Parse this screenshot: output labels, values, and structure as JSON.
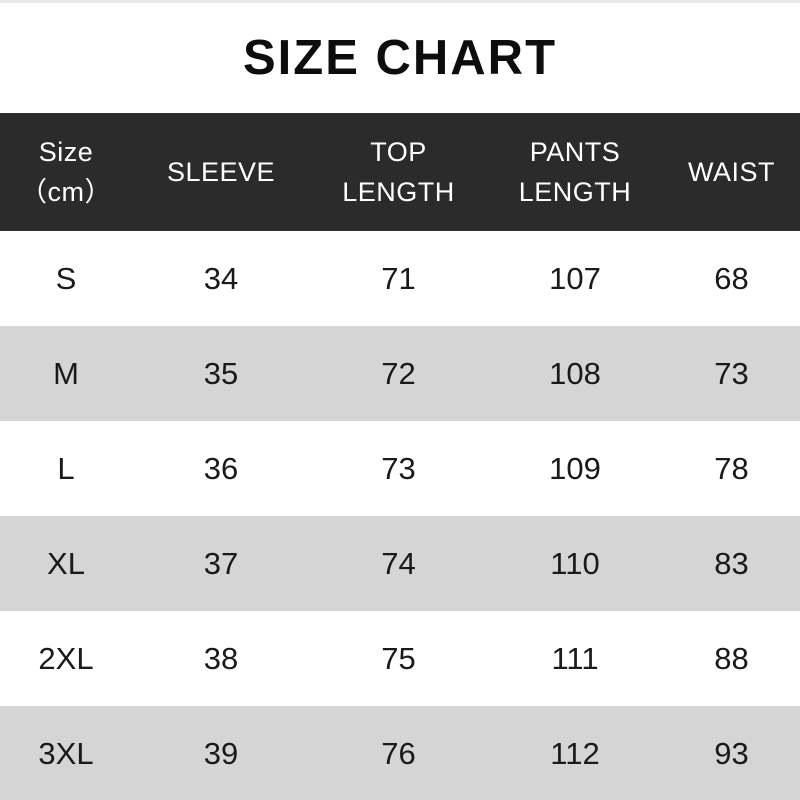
{
  "page": {
    "title": "SIZE CHART"
  },
  "colors": {
    "header_bg": "#2b2b2b",
    "header_text": "#ffffff",
    "row_bg": "#ffffff",
    "row_alt_bg": "#d5d5d5",
    "text": "#1a1a1a",
    "title_text": "#0d0d0d"
  },
  "chart_data": {
    "type": "table",
    "title": "SIZE CHART",
    "unit": "cm",
    "columns": [
      "Size（cm）",
      "SLEEVE",
      "TOP LENGTH",
      "PANTS LENGTH",
      "WAIST"
    ],
    "columns_display": [
      "Size\n（cm）",
      "SLEEVE",
      "TOP\nLENGTH",
      "PANTS\nLENGTH",
      "WAIST"
    ],
    "column_ids": [
      "size",
      "sleeve",
      "top-length",
      "pants-length",
      "waist"
    ],
    "rows": [
      [
        "S",
        34,
        71,
        107,
        68
      ],
      [
        "M",
        35,
        72,
        108,
        73
      ],
      [
        "L",
        36,
        73,
        109,
        78
      ],
      [
        "XL",
        37,
        74,
        110,
        83
      ],
      [
        "2XL",
        38,
        75,
        111,
        88
      ],
      [
        "3XL",
        39,
        76,
        112,
        93
      ]
    ]
  }
}
